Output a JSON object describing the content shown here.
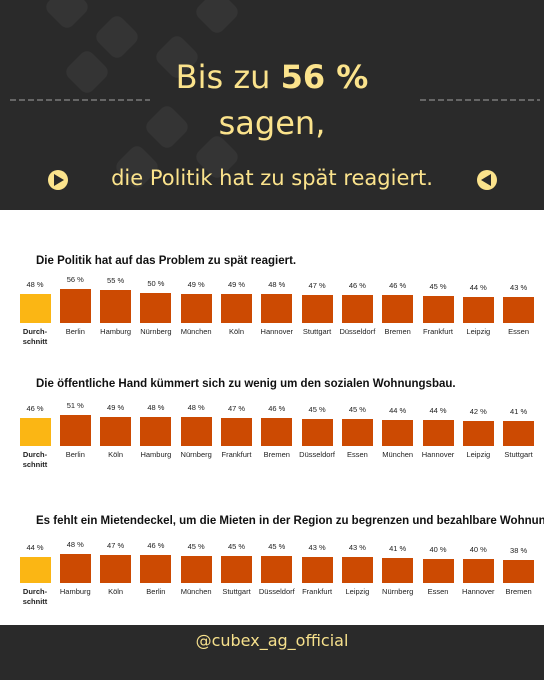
{
  "header": {
    "title_prefix": "Bis zu",
    "title_highlight": "56 %",
    "title_line2": "sagen,",
    "subtitle": "die Politik hat zu spät reagiert."
  },
  "chart_data": [
    {
      "type": "bar",
      "title": "Die Politik hat auf das Problem zu spät reagiert.",
      "categories": [
        "Durch-\nschnitt",
        "Berlin",
        "Hamburg",
        "Nürnberg",
        "München",
        "Köln",
        "Hannover",
        "Stuttgart",
        "Düsseldorf",
        "Bremen",
        "Frankfurt",
        "Leipzig",
        "Essen"
      ],
      "values": [
        48,
        56,
        55,
        50,
        49,
        49,
        48,
        47,
        46,
        46,
        45,
        44,
        43
      ],
      "value_labels": [
        "48 %",
        "56 %",
        "55 %",
        "50 %",
        "49 %",
        "49 %",
        "48 %",
        "47 %",
        "46 %",
        "46 %",
        "45 %",
        "44 %",
        "43 %"
      ],
      "colors": [
        "#fbb614",
        "#cc4a02",
        "#cc4a02",
        "#cc4a02",
        "#cc4a02",
        "#cc4a02",
        "#cc4a02",
        "#cc4a02",
        "#cc4a02",
        "#cc4a02",
        "#cc4a02",
        "#cc4a02",
        "#cc4a02"
      ]
    },
    {
      "type": "bar",
      "title": "Die öffentliche Hand kümmert sich zu wenig um den sozialen Wohnungsbau.",
      "categories": [
        "Durch-\nschnitt",
        "Berlin",
        "Köln",
        "Hamburg",
        "Nürnberg",
        "Frankfurt",
        "Bremen",
        "Düsseldorf",
        "Essen",
        "München",
        "Hannover",
        "Leipzig",
        "Stuttgart"
      ],
      "values": [
        46,
        51,
        49,
        48,
        48,
        47,
        46,
        45,
        45,
        44,
        44,
        42,
        41
      ],
      "value_labels": [
        "46 %",
        "51 %",
        "49 %",
        "48 %",
        "48 %",
        "47 %",
        "46 %",
        "45 %",
        "45 %",
        "44 %",
        "44 %",
        "42 %",
        "41 %"
      ],
      "colors": [
        "#fbb614",
        "#cc4a02",
        "#cc4a02",
        "#cc4a02",
        "#cc4a02",
        "#cc4a02",
        "#cc4a02",
        "#cc4a02",
        "#cc4a02",
        "#cc4a02",
        "#cc4a02",
        "#cc4a02",
        "#cc4a02"
      ]
    },
    {
      "type": "bar",
      "title": "Es fehlt ein Mietendeckel, um die Mieten in der Region zu begrenzen und bezahlbare Wohnung",
      "categories": [
        "Durch-\nschnitt",
        "Hamburg",
        "Köln",
        "Berlin",
        "München",
        "Stuttgart",
        "Düsseldorf",
        "Frankfurt",
        "Leipzig",
        "Nürnberg",
        "Essen",
        "Hannover",
        "Bremen"
      ],
      "values": [
        44,
        48,
        47,
        46,
        45,
        45,
        45,
        43,
        43,
        41,
        40,
        40,
        38
      ],
      "value_labels": [
        "44 %",
        "48 %",
        "47 %",
        "46 %",
        "45 %",
        "45 %",
        "45 %",
        "43 %",
        "43 %",
        "41 %",
        "40 %",
        "40 %",
        "38 %"
      ],
      "colors": [
        "#fbb614",
        "#cc4a02",
        "#cc4a02",
        "#cc4a02",
        "#cc4a02",
        "#cc4a02",
        "#cc4a02",
        "#cc4a02",
        "#cc4a02",
        "#cc4a02",
        "#cc4a02",
        "#cc4a02",
        "#cc4a02"
      ]
    }
  ],
  "footer": {
    "handle": "@cubex_ag_official"
  }
}
